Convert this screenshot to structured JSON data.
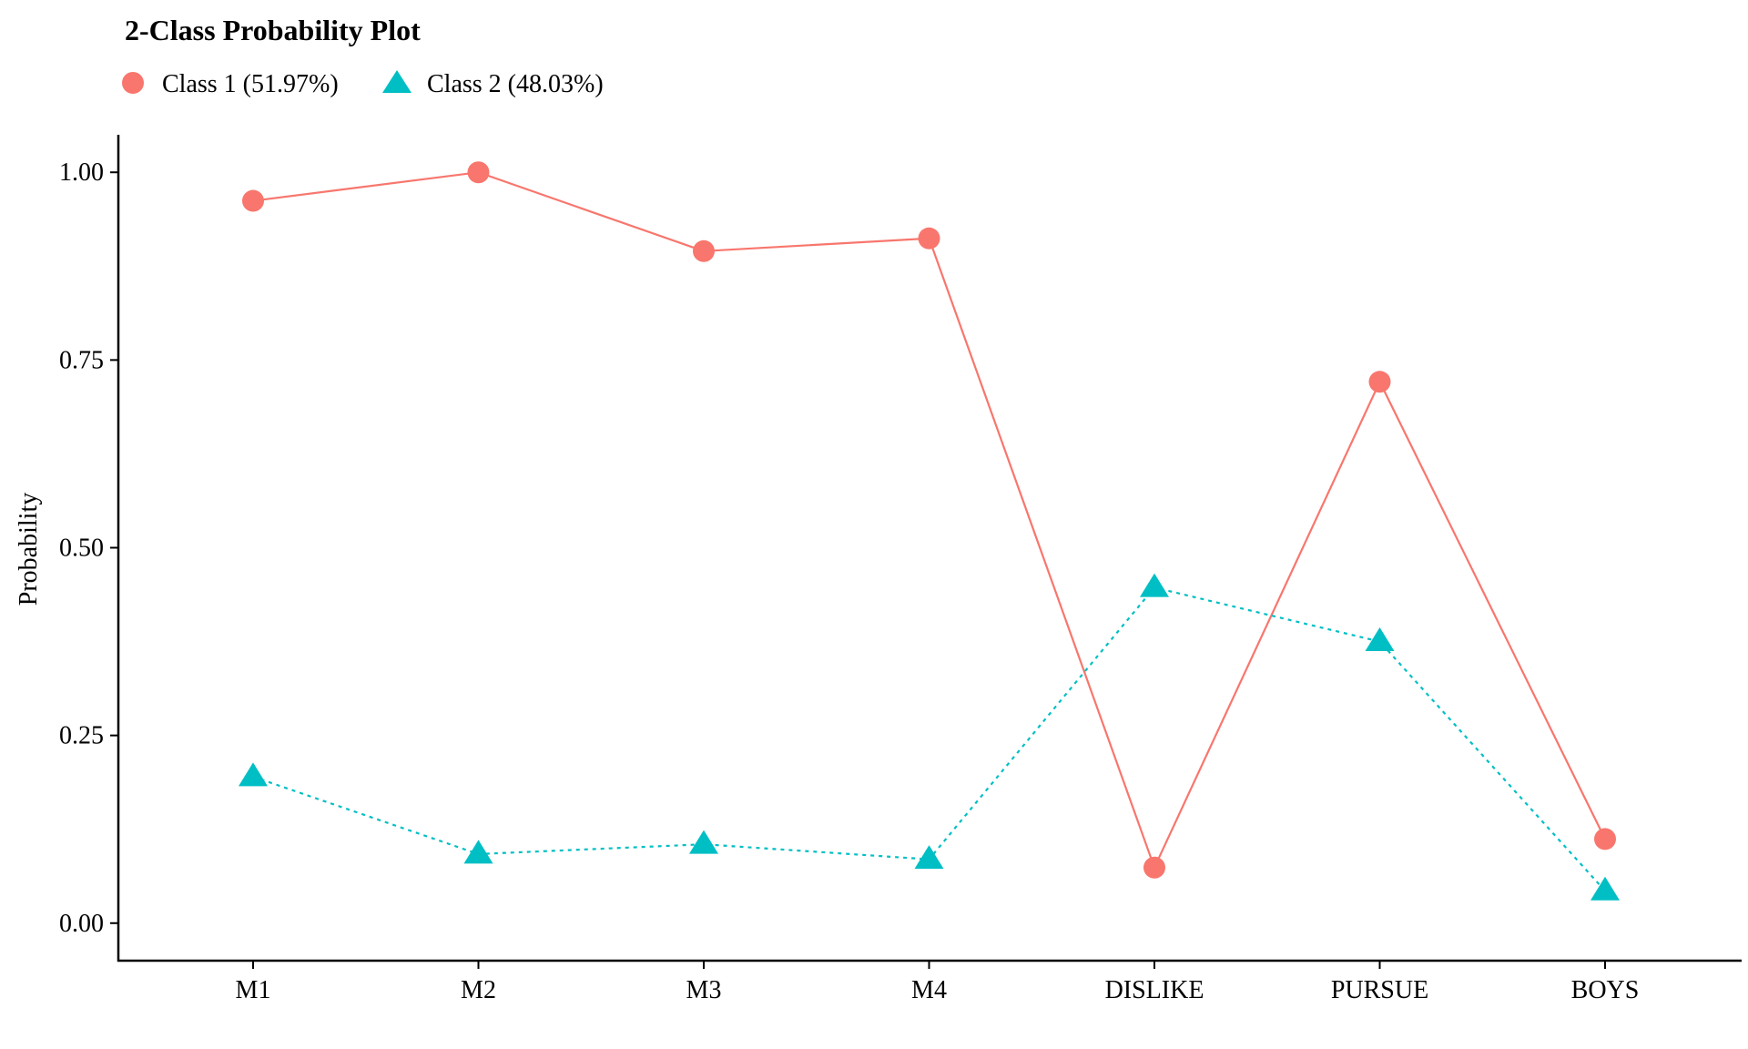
{
  "chart_data": {
    "type": "line",
    "title": "2-Class Probability Plot",
    "xlabel": "",
    "ylabel": "Probability",
    "categories": [
      "M1",
      "M2",
      "M3",
      "M4",
      "DISLIKE",
      "PURSUE",
      "BOYS"
    ],
    "ylim": [
      -0.05,
      1.05
    ],
    "yticks": [
      0.0,
      0.25,
      0.5,
      0.75,
      1.0
    ],
    "ytick_labels": [
      "0.00",
      "0.25",
      "0.50",
      "0.75",
      "1.00"
    ],
    "grid": false,
    "legend_position": "top-left",
    "series": [
      {
        "name": "Class 1 (51.97%)",
        "color": "#F8766D",
        "marker": "circle",
        "line_style": "solid",
        "values": [
          0.962,
          1.0,
          0.895,
          0.912,
          0.074,
          0.721,
          0.112
        ]
      },
      {
        "name": "Class 2 (48.03%)",
        "color": "#00BFC4",
        "marker": "triangle",
        "line_style": "dotted",
        "values": [
          0.195,
          0.092,
          0.105,
          0.085,
          0.447,
          0.375,
          0.043
        ]
      }
    ]
  }
}
